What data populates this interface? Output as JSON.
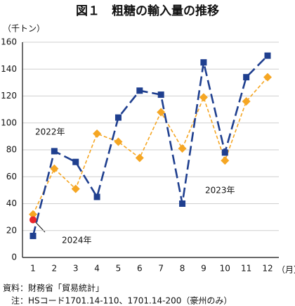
{
  "chart_data": {
    "type": "line",
    "title": "図１　粗糖の輸入量の推移",
    "y_unit": "（千トン）",
    "x_unit": "（月）",
    "categories": [
      "1",
      "2",
      "3",
      "4",
      "5",
      "6",
      "7",
      "8",
      "9",
      "10",
      "11",
      "12"
    ],
    "series": [
      {
        "name": "2022年",
        "color": "#f5a623",
        "marker": "diamond",
        "dash": "dashed",
        "values": [
          32,
          66,
          51,
          92,
          86,
          74,
          108,
          81,
          119,
          72,
          116,
          134
        ]
      },
      {
        "name": "2023年",
        "color": "#1f3f8f",
        "marker": "square",
        "dash": "longdash",
        "values": [
          16,
          79,
          71,
          45,
          104,
          124,
          121,
          40,
          145,
          78,
          134,
          150
        ]
      },
      {
        "name": "2024年",
        "color": "#e8262a",
        "marker": "circle",
        "dash": "solid",
        "values": [
          28,
          null,
          null,
          null,
          null,
          null,
          null,
          null,
          null,
          null,
          null,
          null
        ]
      }
    ],
    "ylim": [
      0,
      160
    ],
    "yticks": [
      0,
      20,
      40,
      60,
      80,
      100,
      120,
      140,
      160
    ],
    "grid": true
  },
  "notes": [
    "資料：財務省「貿易統計」",
    "　注：HSコード1701.14-110、1701.14-200（豪州のみ）"
  ]
}
